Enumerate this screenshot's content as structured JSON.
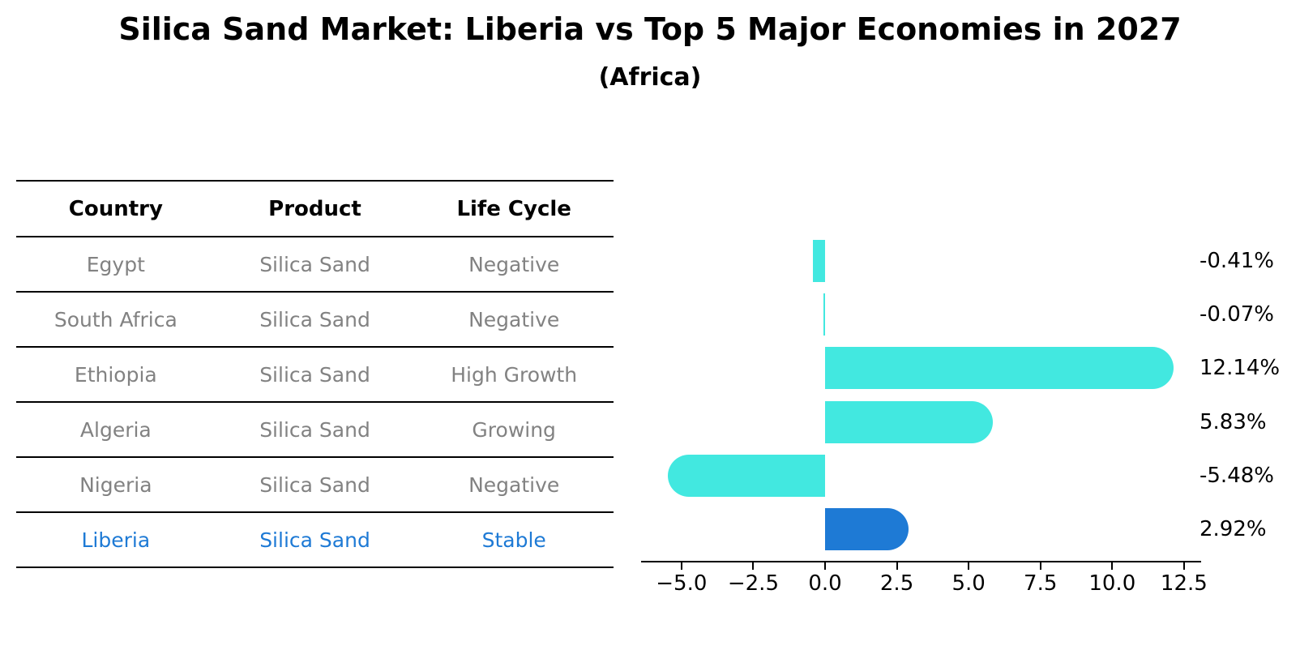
{
  "title": "Silica Sand Market: Liberia vs Top 5 Major Economies in 2027",
  "subtitle": "(Africa)",
  "table": {
    "headers": [
      "Country",
      "Product",
      "Life Cycle"
    ],
    "rows": [
      {
        "country": "Egypt",
        "product": "Silica Sand",
        "life_cycle": "Negative",
        "highlighted": false
      },
      {
        "country": "South Africa",
        "product": "Silica Sand",
        "life_cycle": "Negative",
        "highlighted": false
      },
      {
        "country": "Ethiopia",
        "product": "Silica Sand",
        "life_cycle": "High Growth",
        "highlighted": false
      },
      {
        "country": "Algeria",
        "product": "Silica Sand",
        "life_cycle": "Growing",
        "highlighted": false
      },
      {
        "country": "Nigeria",
        "product": "Silica Sand",
        "life_cycle": "Negative",
        "highlighted": false
      },
      {
        "country": "Liberia",
        "product": "Silica Sand",
        "life_cycle": "Stable",
        "highlighted": true
      }
    ]
  },
  "chart_data": {
    "type": "bar",
    "orientation": "horizontal",
    "categories": [
      "Egypt",
      "South Africa",
      "Ethiopia",
      "Algeria",
      "Nigeria",
      "Liberia"
    ],
    "values": [
      -0.41,
      -0.07,
      12.14,
      5.83,
      -5.48,
      2.92
    ],
    "value_labels": [
      "-0.41%",
      "-0.07%",
      "12.14%",
      "5.83%",
      "-5.48%",
      "2.92%"
    ],
    "x_ticks": [
      -5.0,
      -2.5,
      0.0,
      2.5,
      5.0,
      7.5,
      10.0,
      12.5
    ],
    "x_tick_labels": [
      "−5.0",
      "−2.5",
      "0.0",
      "2.5",
      "5.0",
      "7.5",
      "10.0",
      "12.5"
    ],
    "xlim": [
      -6.4,
      13.1
    ],
    "grid": false,
    "legend": "none",
    "title": "Silica Sand Market: Liberia vs Top 5 Major Economies in 2027 (Africa)",
    "xlabel": "",
    "ylabel": "",
    "bar_color": "#42E8E0",
    "highlight_color": "#1E7AD5",
    "highlight_index": 5
  },
  "colors": {
    "accent_blue": "#1E7AD5",
    "bar_cyan": "#42E8E0",
    "table_text_gray": "#828282",
    "axis_black": "#000000"
  }
}
